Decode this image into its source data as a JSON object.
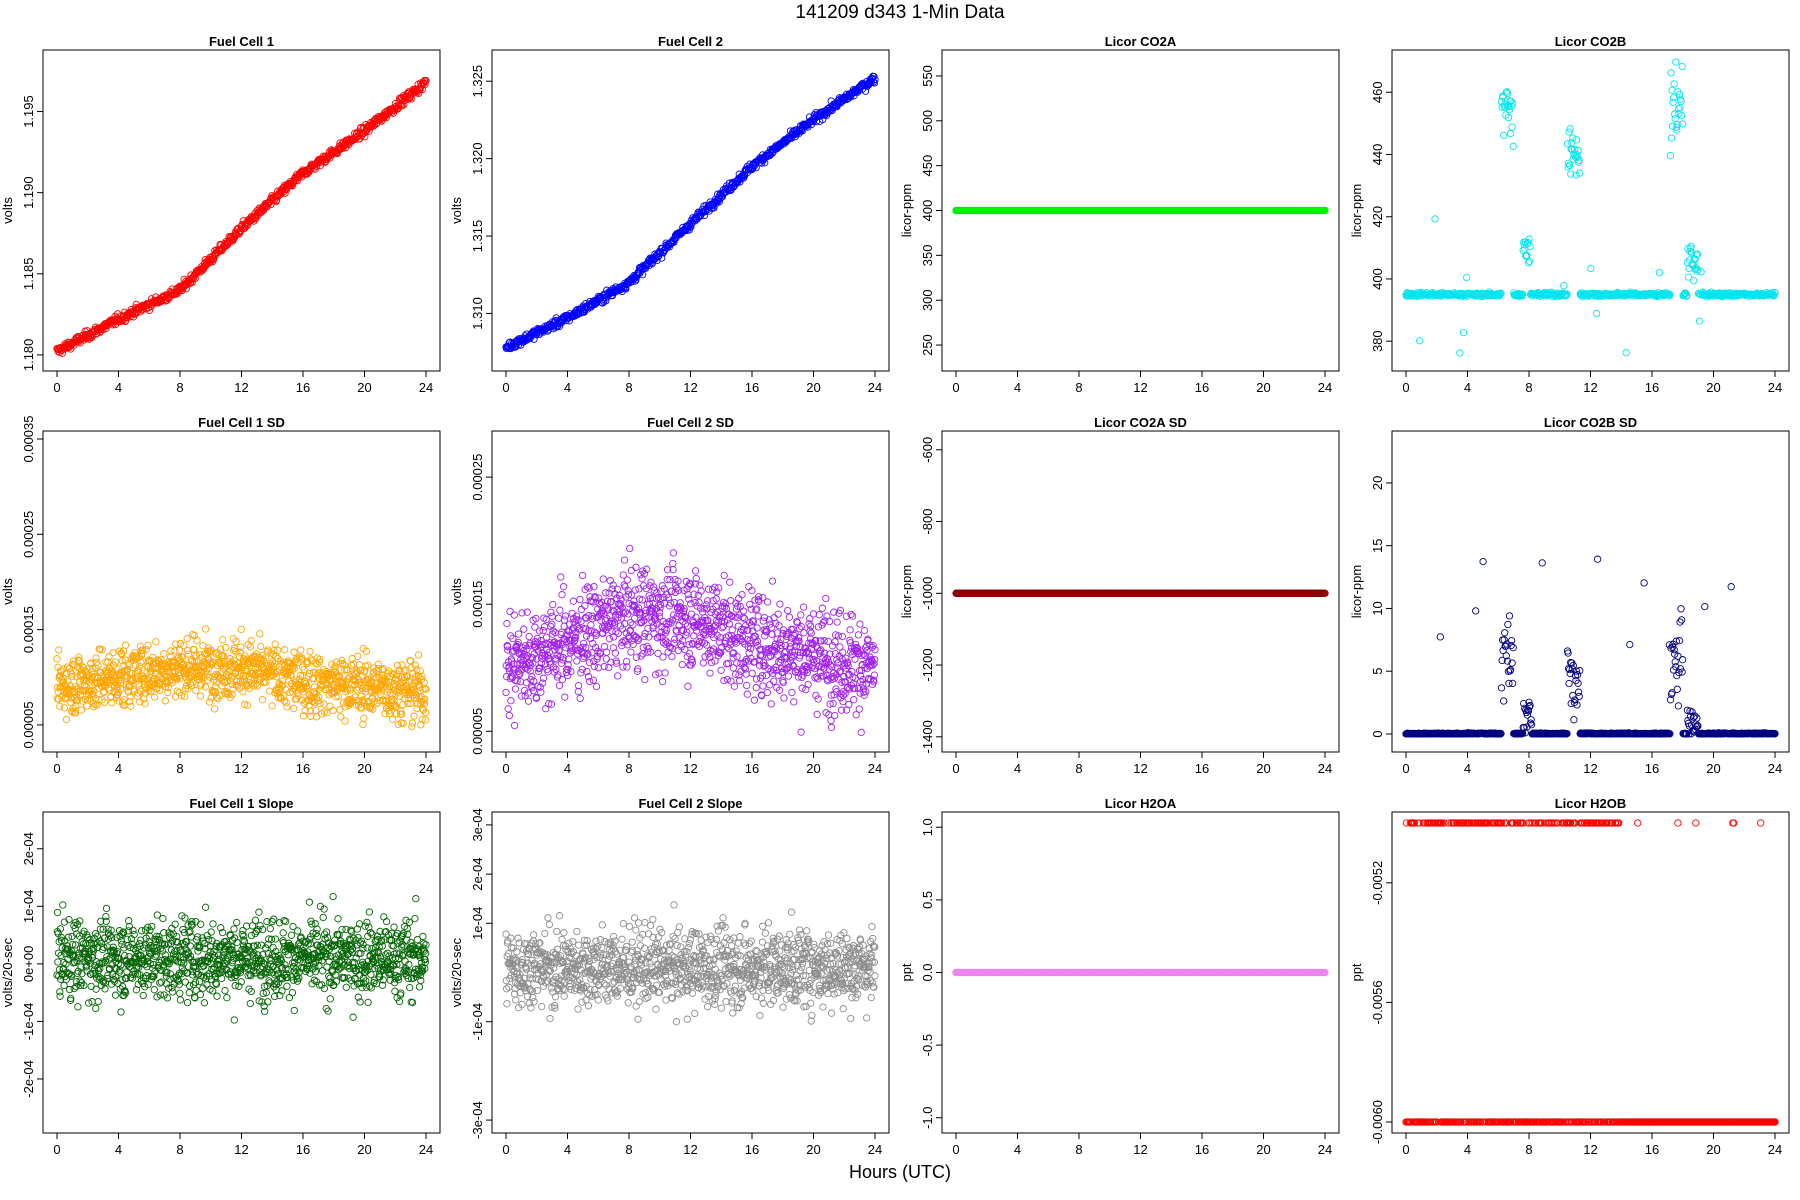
{
  "figure": {
    "title": "141209   d343   1-Min Data",
    "xlabel": "Hours (UTC)"
  },
  "chart_data": [
    {
      "type": "scatter",
      "title": "Fuel Cell 1",
      "xlabel": "",
      "ylabel": "volts",
      "color": "#ff0000",
      "xlim": [
        0,
        24
      ],
      "ylim": [
        1.1795,
        1.1983
      ],
      "x_ticks": [
        {
          "v": 0,
          "l": "0"
        },
        {
          "v": 4,
          "l": "4"
        },
        {
          "v": 8,
          "l": "8"
        },
        {
          "v": 12,
          "l": "12"
        },
        {
          "v": 16,
          "l": "16"
        },
        {
          "v": 20,
          "l": "20"
        },
        {
          "v": 24,
          "l": "24"
        }
      ],
      "y_ticks": [
        {
          "v": 1.18,
          "l": "1.180"
        },
        {
          "v": 1.185,
          "l": "1.185"
        },
        {
          "v": 1.19,
          "l": "1.190"
        },
        {
          "v": 1.195,
          "l": "1.195"
        }
      ],
      "pattern": "trend",
      "x": [
        0,
        4,
        8,
        12,
        16,
        20,
        24
      ],
      "y": [
        1.1802,
        1.1822,
        1.184,
        1.1878,
        1.1912,
        1.1938,
        1.1968
      ],
      "noise": 0.0004,
      "count": 700
    },
    {
      "type": "scatter",
      "title": "Fuel Cell 2",
      "xlabel": "",
      "ylabel": "volts",
      "color": "#0000ff",
      "xlim": [
        0,
        24
      ],
      "ylim": [
        1.3068,
        1.3265
      ],
      "x_ticks": [
        {
          "v": 0,
          "l": "0"
        },
        {
          "v": 4,
          "l": "4"
        },
        {
          "v": 8,
          "l": "8"
        },
        {
          "v": 12,
          "l": "12"
        },
        {
          "v": 16,
          "l": "16"
        },
        {
          "v": 20,
          "l": "20"
        },
        {
          "v": 24,
          "l": "24"
        }
      ],
      "y_ticks": [
        {
          "v": 1.31,
          "l": "1.310"
        },
        {
          "v": 1.315,
          "l": "1.315"
        },
        {
          "v": 1.32,
          "l": "1.320"
        },
        {
          "v": 1.325,
          "l": "1.325"
        }
      ],
      "pattern": "trend",
      "x": [
        0,
        4,
        8,
        12,
        16,
        20,
        24
      ],
      "y": [
        1.3078,
        1.3097,
        1.312,
        1.3158,
        1.3195,
        1.3225,
        1.3252
      ],
      "noise": 0.0004,
      "count": 700
    },
    {
      "type": "scatter",
      "title": "Licor CO2A",
      "xlabel": "",
      "ylabel": "licor-ppm",
      "color": "#00ee00",
      "xlim": [
        0,
        24
      ],
      "ylim": [
        230,
        570
      ],
      "x_ticks": [
        {
          "v": 0,
          "l": "0"
        },
        {
          "v": 4,
          "l": "4"
        },
        {
          "v": 8,
          "l": "8"
        },
        {
          "v": 12,
          "l": "12"
        },
        {
          "v": 16,
          "l": "16"
        },
        {
          "v": 20,
          "l": "20"
        },
        {
          "v": 24,
          "l": "24"
        }
      ],
      "y_ticks": [
        {
          "v": 250,
          "l": "250"
        },
        {
          "v": 300,
          "l": "300"
        },
        {
          "v": 350,
          "l": "350"
        },
        {
          "v": 400,
          "l": "400"
        },
        {
          "v": 450,
          "l": "450"
        },
        {
          "v": 500,
          "l": "500"
        },
        {
          "v": 550,
          "l": "550"
        }
      ],
      "pattern": "constant",
      "x": [
        0,
        24
      ],
      "y": [
        400,
        400
      ],
      "noise": 0,
      "count": 500
    },
    {
      "type": "scatter",
      "title": "Licor CO2B",
      "xlabel": "",
      "ylabel": "licor-ppm",
      "color": "#00e5ee",
      "xlim": [
        0,
        24
      ],
      "ylim": [
        373,
        471
      ],
      "x_ticks": [
        {
          "v": 0,
          "l": "0"
        },
        {
          "v": 4,
          "l": "4"
        },
        {
          "v": 8,
          "l": "8"
        },
        {
          "v": 12,
          "l": "12"
        },
        {
          "v": 16,
          "l": "16"
        },
        {
          "v": 20,
          "l": "20"
        },
        {
          "v": 24,
          "l": "24"
        }
      ],
      "y_ticks": [
        {
          "v": 380,
          "l": "380"
        },
        {
          "v": 400,
          "l": "400"
        },
        {
          "v": 420,
          "l": "420"
        },
        {
          "v": 440,
          "l": "440"
        },
        {
          "v": 460,
          "l": "460"
        }
      ],
      "pattern": "co2b",
      "x": [
        0,
        24
      ],
      "y": [
        395,
        395
      ],
      "noise": 0.3,
      "count": 700
    },
    {
      "type": "scatter",
      "title": "Fuel Cell 1 SD",
      "xlabel": "",
      "ylabel": "volts",
      "color": "#ffa500",
      "xlim": [
        0,
        24
      ],
      "ylim": [
        3e-05,
        0.00035
      ],
      "x_ticks": [
        {
          "v": 0,
          "l": "0"
        },
        {
          "v": 4,
          "l": "4"
        },
        {
          "v": 8,
          "l": "8"
        },
        {
          "v": 12,
          "l": "12"
        },
        {
          "v": 16,
          "l": "16"
        },
        {
          "v": 20,
          "l": "20"
        },
        {
          "v": 24,
          "l": "24"
        }
      ],
      "y_ticks": [
        {
          "v": 5e-05,
          "l": "0.00005"
        },
        {
          "v": 0.00015,
          "l": "0.00015"
        },
        {
          "v": 0.00025,
          "l": "0.00025"
        },
        {
          "v": 0.00035,
          "l": "0.00035"
        }
      ],
      "pattern": "noise",
      "x": [
        0,
        4,
        8,
        12,
        16,
        20,
        24
      ],
      "y": [
        9e-05,
        0.0001,
        0.00011,
        0.00011,
        9.5e-05,
        9e-05,
        8.5e-05
      ],
      "noise": 2.8e-05,
      "count": 1200
    },
    {
      "type": "scatter",
      "title": "Fuel Cell 2 SD",
      "xlabel": "",
      "ylabel": "volts",
      "color": "#a020f0",
      "xlim": [
        0,
        24
      ],
      "ylim": [
        4e-05,
        0.00028
      ],
      "x_ticks": [
        {
          "v": 0,
          "l": "0"
        },
        {
          "v": 4,
          "l": "4"
        },
        {
          "v": 8,
          "l": "8"
        },
        {
          "v": 12,
          "l": "12"
        },
        {
          "v": 16,
          "l": "16"
        },
        {
          "v": 20,
          "l": "20"
        },
        {
          "v": 24,
          "l": "24"
        }
      ],
      "y_ticks": [
        {
          "v": 5e-05,
          "l": "0.00005"
        },
        {
          "v": 0.00015,
          "l": "0.00015"
        },
        {
          "v": 0.00025,
          "l": "0.00025"
        }
      ],
      "pattern": "noise",
      "x": [
        0,
        4,
        8,
        12,
        16,
        20,
        24
      ],
      "y": [
        0.0001,
        0.00012,
        0.00014,
        0.00014,
        0.00012,
        0.00011,
        0.0001
      ],
      "noise": 3.5e-05,
      "count": 1200
    },
    {
      "type": "scatter",
      "title": "Licor CO2A SD",
      "xlabel": "",
      "ylabel": "licor-ppm",
      "color": "#8b0000",
      "xlim": [
        0,
        24
      ],
      "ylim": [
        -1420,
        -570
      ],
      "x_ticks": [
        {
          "v": 0,
          "l": "0"
        },
        {
          "v": 4,
          "l": "4"
        },
        {
          "v": 8,
          "l": "8"
        },
        {
          "v": 12,
          "l": "12"
        },
        {
          "v": 16,
          "l": "16"
        },
        {
          "v": 20,
          "l": "20"
        },
        {
          "v": 24,
          "l": "24"
        }
      ],
      "y_ticks": [
        {
          "v": -1400,
          "l": "-1400"
        },
        {
          "v": -1200,
          "l": "-1200"
        },
        {
          "v": -1000,
          "l": "-1000"
        },
        {
          "v": -800,
          "l": "-800"
        },
        {
          "v": -600,
          "l": "-600"
        }
      ],
      "pattern": "constant",
      "x": [
        0,
        24
      ],
      "y": [
        -1000,
        -1000
      ],
      "noise": 0,
      "count": 500
    },
    {
      "type": "scatter",
      "title": "Licor CO2B SD",
      "xlabel": "",
      "ylabel": "licor-ppm",
      "color": "#000080",
      "xlim": [
        0,
        24
      ],
      "ylim": [
        -0.8,
        23.5
      ],
      "x_ticks": [
        {
          "v": 0,
          "l": "0"
        },
        {
          "v": 4,
          "l": "4"
        },
        {
          "v": 8,
          "l": "8"
        },
        {
          "v": 12,
          "l": "12"
        },
        {
          "v": 16,
          "l": "16"
        },
        {
          "v": 20,
          "l": "20"
        },
        {
          "v": 24,
          "l": "24"
        }
      ],
      "y_ticks": [
        {
          "v": 0,
          "l": "0"
        },
        {
          "v": 5,
          "l": "5"
        },
        {
          "v": 10,
          "l": "10"
        },
        {
          "v": 15,
          "l": "15"
        },
        {
          "v": 20,
          "l": "20"
        }
      ],
      "pattern": "co2bsd",
      "x": [
        0,
        24
      ],
      "y": [
        0,
        0
      ],
      "noise": 0.05,
      "count": 700
    },
    {
      "type": "scatter",
      "title": "Fuel Cell 1 Slope",
      "xlabel": "",
      "ylabel": "volts/20-sec",
      "color": "#006400",
      "xlim": [
        0,
        24
      ],
      "ylim": [
        -0.00028,
        0.00025
      ],
      "x_ticks": [
        {
          "v": 0,
          "l": "0"
        },
        {
          "v": 4,
          "l": "4"
        },
        {
          "v": 8,
          "l": "8"
        },
        {
          "v": 12,
          "l": "12"
        },
        {
          "v": 16,
          "l": "16"
        },
        {
          "v": 20,
          "l": "20"
        },
        {
          "v": 24,
          "l": "24"
        }
      ],
      "y_ticks": [
        {
          "v": -0.0002,
          "l": "-2e-04"
        },
        {
          "v": -0.0001,
          "l": "-1e-04"
        },
        {
          "v": 0,
          "l": "0e+00"
        },
        {
          "v": 0.0001,
          "l": "1e-04"
        },
        {
          "v": 0.0002,
          "l": "2e-04"
        }
      ],
      "pattern": "noise",
      "x": [
        0,
        24
      ],
      "y": [
        1e-05,
        1e-05
      ],
      "noise": 6e-05,
      "count": 1200
    },
    {
      "type": "scatter",
      "title": "Fuel Cell 2 Slope",
      "xlabel": "",
      "ylabel": "volts/20-sec",
      "color": "#8c8c8c",
      "xlim": [
        0,
        24
      ],
      "ylim": [
        -0.00031,
        0.00031
      ],
      "x_ticks": [
        {
          "v": 0,
          "l": "0"
        },
        {
          "v": 4,
          "l": "4"
        },
        {
          "v": 8,
          "l": "8"
        },
        {
          "v": 12,
          "l": "12"
        },
        {
          "v": 16,
          "l": "16"
        },
        {
          "v": 20,
          "l": "20"
        },
        {
          "v": 24,
          "l": "24"
        }
      ],
      "y_ticks": [
        {
          "v": -0.0003,
          "l": "-3e-04"
        },
        {
          "v": -0.0001,
          "l": "-1e-04"
        },
        {
          "v": 0.0001,
          "l": "1e-04"
        },
        {
          "v": 0.0002,
          "l": "2e-04"
        },
        {
          "v": 0.0003,
          "l": "3e-04"
        }
      ],
      "pattern": "noise",
      "x": [
        0,
        24
      ],
      "y": [
        1e-05,
        1e-05
      ],
      "noise": 7e-05,
      "count": 1200
    },
    {
      "type": "scatter",
      "title": "Licor H2OA",
      "xlabel": "",
      "ylabel": "ppt",
      "color": "#ee82ee",
      "xlim": [
        0,
        24
      ],
      "ylim": [
        -1.05,
        1.05
      ],
      "x_ticks": [
        {
          "v": 0,
          "l": "0"
        },
        {
          "v": 4,
          "l": "4"
        },
        {
          "v": 8,
          "l": "8"
        },
        {
          "v": 12,
          "l": "12"
        },
        {
          "v": 16,
          "l": "16"
        },
        {
          "v": 20,
          "l": "20"
        },
        {
          "v": 24,
          "l": "24"
        }
      ],
      "y_ticks": [
        {
          "v": -1,
          "l": "-1.0"
        },
        {
          "v": -0.5,
          "l": "-0.5"
        },
        {
          "v": 0,
          "l": "0.0"
        },
        {
          "v": 0.5,
          "l": "0.5"
        },
        {
          "v": 1,
          "l": "1.0"
        }
      ],
      "pattern": "constant",
      "x": [
        0,
        24
      ],
      "y": [
        0,
        0
      ],
      "noise": 0,
      "count": 500
    },
    {
      "type": "scatter",
      "title": "Licor H2OB",
      "xlabel": "",
      "ylabel": "ppt",
      "color": "#ff0000",
      "xlim": [
        0,
        24
      ],
      "ylim": [
        -0.00601,
        -0.00499
      ],
      "x_ticks": [
        {
          "v": 0,
          "l": "0"
        },
        {
          "v": 4,
          "l": "4"
        },
        {
          "v": 8,
          "l": "8"
        },
        {
          "v": 12,
          "l": "12"
        },
        {
          "v": 16,
          "l": "16"
        },
        {
          "v": 20,
          "l": "20"
        },
        {
          "v": 24,
          "l": "24"
        }
      ],
      "y_ticks": [
        {
          "v": -0.006,
          "l": "-0.0060"
        },
        {
          "v": -0.0056,
          "l": "-0.0056"
        },
        {
          "v": -0.0052,
          "l": "-0.0052"
        }
      ],
      "pattern": "binary",
      "x": [
        0,
        24
      ],
      "y": [
        -0.006,
        -0.005
      ],
      "noise": 0,
      "count": 700
    }
  ]
}
